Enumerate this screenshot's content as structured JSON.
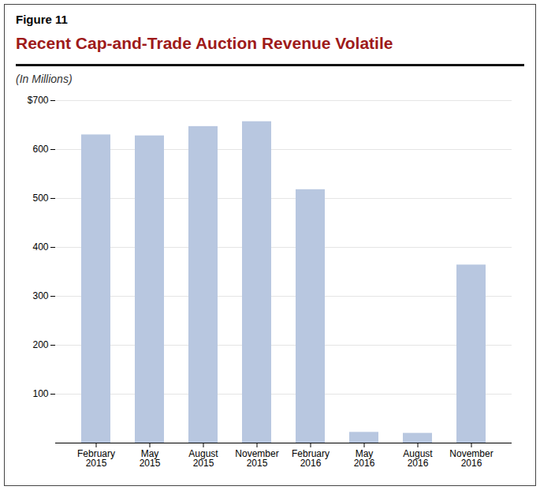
{
  "chart_data": {
    "type": "bar",
    "figure_label": "Figure 11",
    "title": "Recent Cap-and-Trade Auction Revenue Volatile",
    "subtitle": "(In Millions)",
    "categories": [
      "February\n2015",
      "May\n2015",
      "August\n2015",
      "November\n2015",
      "February\n2016",
      "May\n2016",
      "August\n2016",
      "November\n2016"
    ],
    "values": [
      630,
      628,
      647,
      657,
      518,
      22,
      20,
      364
    ],
    "color": "#b8c7e0",
    "ylim": [
      0,
      700
    ],
    "yticks": [
      100,
      200,
      300,
      400,
      500,
      600,
      {
        "value": 700,
        "label": "$700"
      }
    ],
    "grid": true
  }
}
